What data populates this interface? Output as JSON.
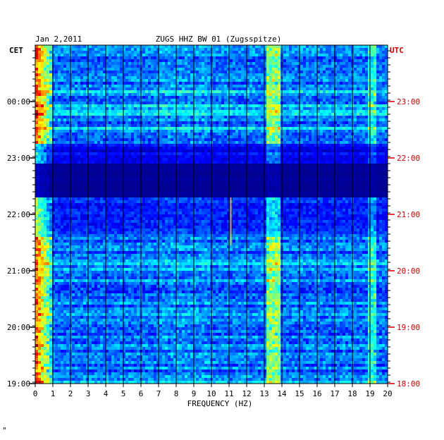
{
  "chart_data": {
    "type": "heatmap",
    "date_label": "Jan 2,2011",
    "title": "ZUGS HHZ BW 01 (Zugsspitze)",
    "xlabel": "FREQUENCY (HZ)",
    "left_axis_label": "CET",
    "right_axis_label": "UTC",
    "xlim": [
      0,
      20
    ],
    "x_ticks": [
      "0",
      "1",
      "2",
      "3",
      "4",
      "5",
      "6",
      "7",
      "8",
      "9",
      "10",
      "11",
      "12",
      "13",
      "14",
      "15",
      "16",
      "17",
      "18",
      "19",
      "20"
    ],
    "left_time_ticks": [
      "00:00",
      "23:00",
      "22:00",
      "21:00",
      "20:00",
      "19:00"
    ],
    "right_time_ticks": [
      "23:00",
      "22:00",
      "21:00",
      "20:00",
      "19:00",
      "18:00"
    ],
    "colors": {
      "background_dark": "#00008c",
      "grid_line": "#000000",
      "left_tick_color": "#000000",
      "right_tick_color": "#cc0000",
      "utc_label_color": "#cc0000"
    },
    "features": {
      "low_frequency_energy_band_hz": [
        0,
        1
      ],
      "persistent_band_hz": [
        13.3,
        13.8
      ],
      "secondary_band_hz": [
        18.8,
        19.3
      ],
      "quiet_gap_cet": [
        "22:15",
        "22:40"
      ],
      "narrowband_line_hz": 11.1
    }
  },
  "corner_mark": "\""
}
